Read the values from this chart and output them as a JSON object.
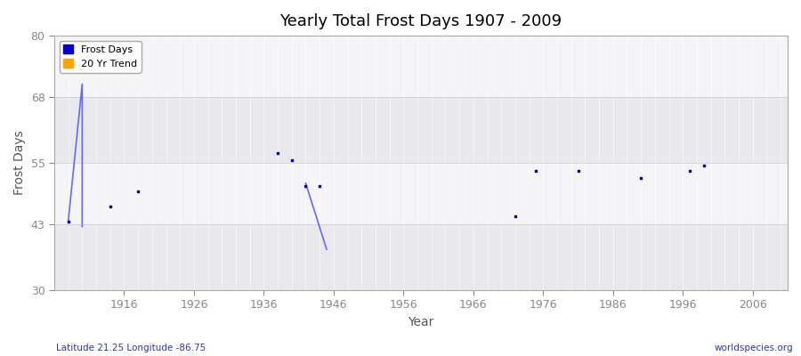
{
  "title": "Yearly Total Frost Days 1907 - 2009",
  "xlabel": "Year",
  "ylabel": "Frost Days",
  "xlim": [
    1906,
    2011
  ],
  "ylim": [
    30,
    80
  ],
  "yticks": [
    30,
    43,
    55,
    68,
    80
  ],
  "xticks": [
    1916,
    1926,
    1936,
    1946,
    1956,
    1966,
    1976,
    1986,
    1996,
    2006
  ],
  "background_color": "#f0f0f0",
  "plot_bg_color": "#f0f0f0",
  "scatter_color": "#0000cc",
  "trend_color": "#ffa500",
  "scatter_size": 4,
  "frost_days_x": [
    1908,
    1914,
    1918,
    1938,
    1940,
    1942,
    1944,
    1972,
    1975,
    1981,
    1990,
    1997,
    1999
  ],
  "frost_days_y": [
    43.5,
    46.5,
    49.5,
    57.0,
    55.5,
    50.5,
    50.5,
    44.5,
    53.5,
    53.5,
    52.0,
    53.5,
    54.5
  ],
  "trend_line1_x": [
    1908,
    1910,
    1910
  ],
  "trend_line1_y": [
    43.5,
    70.5,
    42.5
  ],
  "trend_line2_x": [
    1942,
    1945
  ],
  "trend_line2_y": [
    51.0,
    38.0
  ],
  "subtitle": "Latitude 21.25 Longitude -86.75",
  "watermark": "worldspecies.org",
  "band_ranges": [
    [
      30,
      43
    ],
    [
      55,
      68
    ]
  ],
  "band_colors": [
    "#e8e8e8",
    "#e8e8e8"
  ]
}
